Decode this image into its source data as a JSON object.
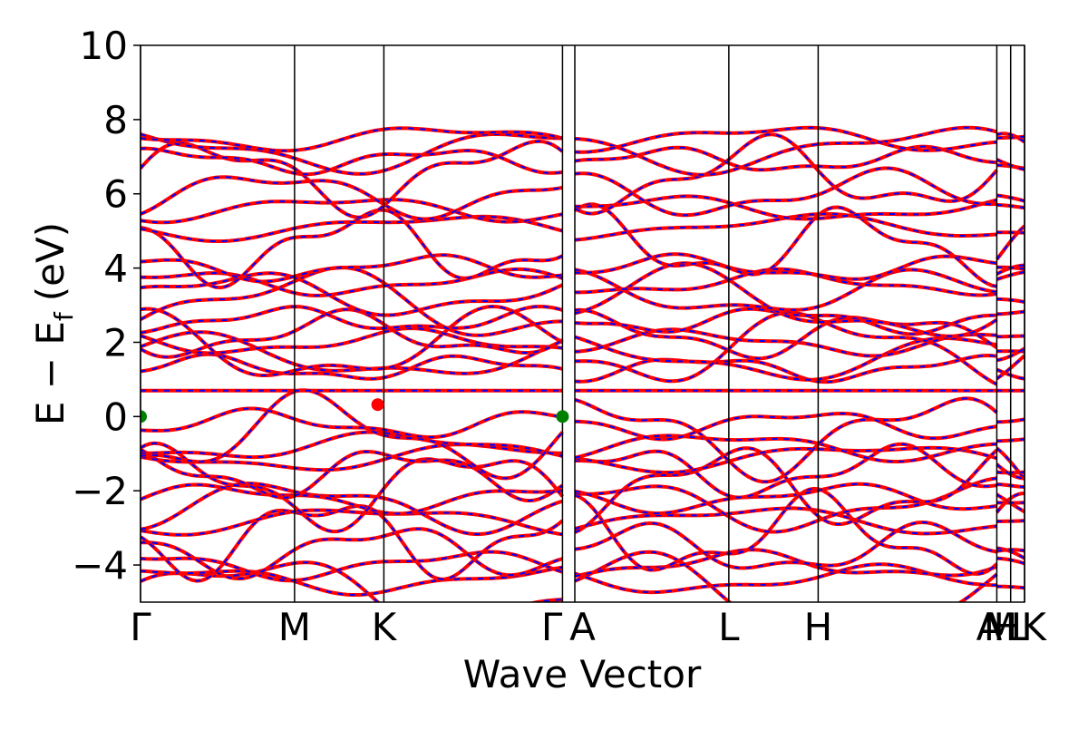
{
  "chart_data": {
    "type": "line",
    "title": "",
    "xlabel": "Wave Vector",
    "ylabel": "E − E",
    "ylabel_subscript": "f",
    "ylabel_unit": "(eV)",
    "ylim": [
      -5,
      10
    ],
    "yticks": [
      -4,
      -2,
      0,
      2,
      4,
      6,
      8,
      10
    ],
    "ytick_labels": [
      "−4",
      "−2",
      "0",
      "2",
      "4",
      "6",
      "8",
      "10"
    ],
    "kpath_points": [
      0,
      1.0,
      1.58,
      2.74,
      2.82,
      3.82,
      4.4,
      5.56,
      5.65,
      5.74
    ],
    "high_symmetry_labels": [
      "Γ",
      "M",
      "K",
      "Γ",
      "A",
      "L",
      "H",
      "A",
      "M",
      "L",
      "H",
      "K"
    ],
    "grid": false,
    "legend": "none",
    "series": [
      {
        "color": "#ff0000",
        "style": "solid"
      },
      {
        "color": "#0000ff",
        "style": "dashed"
      }
    ],
    "band_edges": [
      {
        "k": 0,
        "E": 0.0,
        "color": "#008000"
      },
      {
        "k": 1.54,
        "E": 0.32,
        "color": "#ff0000"
      },
      {
        "k": 2.74,
        "E": 0.0,
        "color": "#008000"
      }
    ]
  }
}
